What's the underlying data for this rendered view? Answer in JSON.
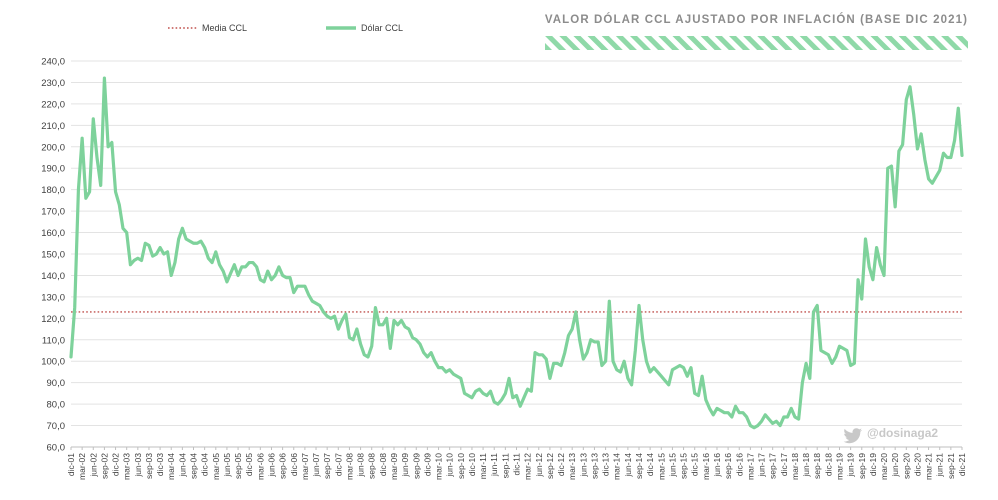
{
  "chart_data": {
    "type": "line",
    "title": "VALOR DÓLAR CCL AJUSTADO POR INFLACIÓN (BASE DIC 2021)",
    "xlabel": "",
    "ylabel": "",
    "ylim": [
      60,
      240
    ],
    "y_ticks": [
      "60,0",
      "70,0",
      "80,0",
      "90,0",
      "100,0",
      "110,0",
      "120,0",
      "130,0",
      "140,0",
      "150,0",
      "160,0",
      "170,0",
      "180,0",
      "190,0",
      "200,0",
      "210,0",
      "220,0",
      "230,0",
      "240,0"
    ],
    "x_start": "dic-01",
    "x_tick_labels": [
      "dic-01",
      "mar-02",
      "jun-02",
      "sep-02",
      "dic-02",
      "mar-03",
      "jun-03",
      "sep-03",
      "dic-03",
      "mar-04",
      "jun-04",
      "sep-04",
      "dic-04",
      "mar-05",
      "jun-05",
      "sep-05",
      "dic-05",
      "mar-06",
      "jun-06",
      "sep-06",
      "dic-06",
      "mar-07",
      "jun-07",
      "sep-07",
      "dic-07",
      "mar-08",
      "jun-08",
      "sep-08",
      "dic-08",
      "mar-09",
      "jun-09",
      "sep-09",
      "dic-09",
      "mar-10",
      "jun-10",
      "sep-10",
      "dic-10",
      "mar-11",
      "jun-11",
      "sep-11",
      "dic-11",
      "mar-12",
      "jun-12",
      "sep-12",
      "dic-12",
      "mar-13",
      "jun-13",
      "sep-13",
      "dic-13",
      "mar-14",
      "jun-14",
      "sep-14",
      "dic-14",
      "mar-15",
      "jun-15",
      "sep-15",
      "dic-15",
      "mar-16",
      "jun-16",
      "sep-16",
      "dic-16",
      "mar-17",
      "jun-17",
      "sep-17",
      "dic-17",
      "mar-18",
      "jun-18",
      "sep-18",
      "dic-18",
      "mar-19",
      "jun-19",
      "sep-19",
      "dic-19",
      "mar-20",
      "jun-20",
      "sep-20",
      "dic-20",
      "mar-21",
      "jun-21",
      "sep-21",
      "dic-21"
    ],
    "legend_position": "top-left",
    "grid": true,
    "series": [
      {
        "name": "Dólar CCL",
        "color": "#7ed29b",
        "values": [
          102,
          125,
          180,
          204,
          176,
          179,
          213,
          195,
          182,
          232,
          200,
          202,
          179,
          173,
          162,
          160,
          145,
          147,
          148,
          147,
          155,
          154,
          149,
          150,
          153,
          150,
          151,
          140,
          146,
          157,
          162,
          157,
          156,
          155,
          155,
          156,
          153,
          148,
          146,
          151,
          145,
          142,
          137,
          141,
          145,
          140,
          144,
          144,
          146,
          146,
          144,
          138,
          137,
          142,
          138,
          140,
          144,
          140,
          139,
          139,
          132,
          135,
          135,
          135,
          131,
          128,
          127,
          126,
          123,
          121,
          120,
          121,
          115,
          119,
          122,
          111,
          110,
          115,
          108,
          103,
          102,
          107,
          125,
          117,
          117,
          120,
          106,
          119,
          117,
          119,
          116,
          115,
          111,
          110,
          108,
          104,
          102,
          104,
          100,
          97,
          97,
          95,
          96,
          94,
          93,
          92,
          85,
          84,
          83,
          86,
          87,
          85,
          84,
          86,
          81,
          80,
          82,
          85,
          92,
          83,
          84,
          79,
          83,
          87,
          86,
          104,
          103,
          103,
          101,
          92,
          99,
          99,
          98,
          104,
          112,
          115,
          123,
          110,
          101,
          104,
          110,
          109,
          109,
          98,
          100,
          128,
          100,
          96,
          95,
          100,
          92,
          89,
          105,
          126,
          110,
          100,
          95,
          97,
          95,
          93,
          91,
          89,
          96,
          97,
          98,
          97,
          93,
          97,
          85,
          84,
          93,
          82,
          78,
          75,
          78,
          77,
          76,
          76,
          74,
          79,
          76,
          76,
          74,
          70,
          69,
          70,
          72,
          75,
          73,
          71,
          72,
          70,
          74,
          74,
          78,
          74,
          73,
          90,
          99,
          92,
          123,
          126,
          105,
          104,
          103,
          99,
          102,
          107,
          106,
          105,
          98,
          99,
          138,
          129,
          157,
          144,
          138,
          153,
          145,
          140,
          190,
          191,
          172,
          198,
          201,
          222,
          228,
          215,
          199,
          206,
          194,
          185,
          183,
          186,
          189,
          197,
          195,
          195,
          203,
          218,
          196
        ]
      }
    ],
    "reference_lines": [
      {
        "name": "Media CCL",
        "value": 123,
        "color": "#c0504d",
        "style": "dotted"
      }
    ]
  },
  "watermark": {
    "handle": "@dosinaga2",
    "icon": "twitter-bird-icon"
  }
}
